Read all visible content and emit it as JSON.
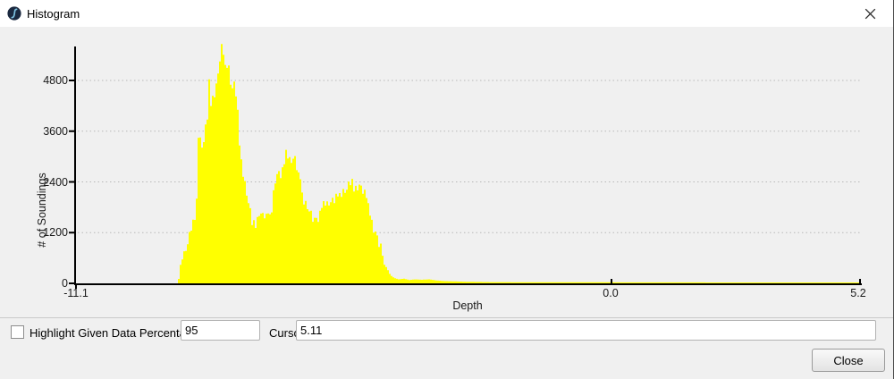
{
  "titlebar": {
    "title": "Histogram",
    "close_glyph": "✕"
  },
  "chart_data": {
    "type": "bar",
    "title": "",
    "xlabel": "Depth",
    "ylabel": "# of Soundings",
    "xlim": [
      -11.1,
      5.2
    ],
    "ylim": [
      0,
      5600
    ],
    "bar_color": "#ffff00",
    "axis_color": "#000000",
    "grid": {
      "horizontal_dotted": true,
      "color": "#b8b8b8"
    },
    "x_ticks": [
      {
        "value": -11.1,
        "label": "-11.1"
      },
      {
        "value": 0.0,
        "label": "0.0"
      },
      {
        "value": 5.2,
        "label": "5.2"
      }
    ],
    "y_ticks": [
      {
        "value": 0,
        "label": "0"
      },
      {
        "value": 1200,
        "label": "1200"
      },
      {
        "value": 2400,
        "label": "2400"
      },
      {
        "value": 3600,
        "label": "3600"
      },
      {
        "value": 4800,
        "label": "4800"
      }
    ],
    "points_format": [
      "depth",
      "soundings"
    ],
    "points": [
      [
        -8.98,
        0
      ],
      [
        -8.97,
        60
      ],
      [
        -8.93,
        430
      ],
      [
        -8.87,
        640
      ],
      [
        -8.82,
        830
      ],
      [
        -8.76,
        1020
      ],
      [
        -8.71,
        1250
      ],
      [
        -8.65,
        1430
      ],
      [
        -8.59,
        2000
      ],
      [
        -8.56,
        3550
      ],
      [
        -8.52,
        3400
      ],
      [
        -8.48,
        3100
      ],
      [
        -8.43,
        3500
      ],
      [
        -8.37,
        3900
      ],
      [
        -8.33,
        4900
      ],
      [
        -8.3,
        4300
      ],
      [
        -8.22,
        4500
      ],
      [
        -8.15,
        4850
      ],
      [
        -8.11,
        5300
      ],
      [
        -8.09,
        5600
      ],
      [
        -8.04,
        5450
      ],
      [
        -8.0,
        5150
      ],
      [
        -7.94,
        5250
      ],
      [
        -7.89,
        4800
      ],
      [
        -7.83,
        4600
      ],
      [
        -7.8,
        4750
      ],
      [
        -7.74,
        4000
      ],
      [
        -7.7,
        3350
      ],
      [
        -7.67,
        2950
      ],
      [
        -7.61,
        2500
      ],
      [
        -7.57,
        2260
      ],
      [
        -7.52,
        1980
      ],
      [
        -7.44,
        1400
      ],
      [
        -7.39,
        1380
      ],
      [
        -7.33,
        1560
      ],
      [
        -7.29,
        1730
      ],
      [
        -7.24,
        1560
      ],
      [
        -7.2,
        1630
      ],
      [
        -7.15,
        1540
      ],
      [
        -7.11,
        1700
      ],
      [
        -7.05,
        1600
      ],
      [
        -7.02,
        2010
      ],
      [
        -6.96,
        2480
      ],
      [
        -6.9,
        2600
      ],
      [
        -6.85,
        2550
      ],
      [
        -6.79,
        2720
      ],
      [
        -6.74,
        3170
      ],
      [
        -6.68,
        3050
      ],
      [
        -6.64,
        2870
      ],
      [
        -6.61,
        3080
      ],
      [
        -6.55,
        2940
      ],
      [
        -6.5,
        2660
      ],
      [
        -6.42,
        2230
      ],
      [
        -6.37,
        2010
      ],
      [
        -6.27,
        1840
      ],
      [
        -6.18,
        1520
      ],
      [
        -6.11,
        1420
      ],
      [
        -6.05,
        1480
      ],
      [
        -5.99,
        1800
      ],
      [
        -5.94,
        1950
      ],
      [
        -5.88,
        1870
      ],
      [
        -5.81,
        1950
      ],
      [
        -5.75,
        1880
      ],
      [
        -5.66,
        2050
      ],
      [
        -5.57,
        2150
      ],
      [
        -5.47,
        2250
      ],
      [
        -5.38,
        2360
      ],
      [
        -5.31,
        2250
      ],
      [
        -5.23,
        2300
      ],
      [
        -5.14,
        2150
      ],
      [
        -5.07,
        2050
      ],
      [
        -4.99,
        1700
      ],
      [
        -4.94,
        1360
      ],
      [
        -4.86,
        1100
      ],
      [
        -4.81,
        900
      ],
      [
        -4.75,
        790
      ],
      [
        -4.7,
        450
      ],
      [
        -4.64,
        360
      ],
      [
        -4.57,
        190
      ],
      [
        -4.49,
        130
      ],
      [
        -4.4,
        95
      ],
      [
        -4.29,
        110
      ],
      [
        -4.18,
        80
      ],
      [
        -4.05,
        95
      ],
      [
        -3.92,
        85
      ],
      [
        -3.77,
        95
      ],
      [
        -3.62,
        70
      ],
      [
        -3.47,
        55
      ],
      [
        -3.3,
        50
      ],
      [
        -3.12,
        42
      ],
      [
        -2.84,
        35
      ],
      [
        -2.47,
        30
      ],
      [
        -1.91,
        28
      ],
      [
        -1.17,
        26
      ],
      [
        -0.43,
        25
      ],
      [
        0.32,
        24
      ],
      [
        1.25,
        23
      ],
      [
        2.17,
        22
      ],
      [
        3.29,
        22
      ],
      [
        4.22,
        21
      ],
      [
        5.2,
        20
      ]
    ]
  },
  "controls": {
    "highlight_checkbox_label": "Highlight Given Data Percentage",
    "highlight_checked": false,
    "percentage_value": "95",
    "cursor_label": "Cursor:",
    "cursor_value": "5.11",
    "close_button": "Close"
  },
  "colors": {
    "window_bg": "#f0f0f0",
    "titlebar_bg": "#ffffff",
    "bar": "#ffff00"
  }
}
